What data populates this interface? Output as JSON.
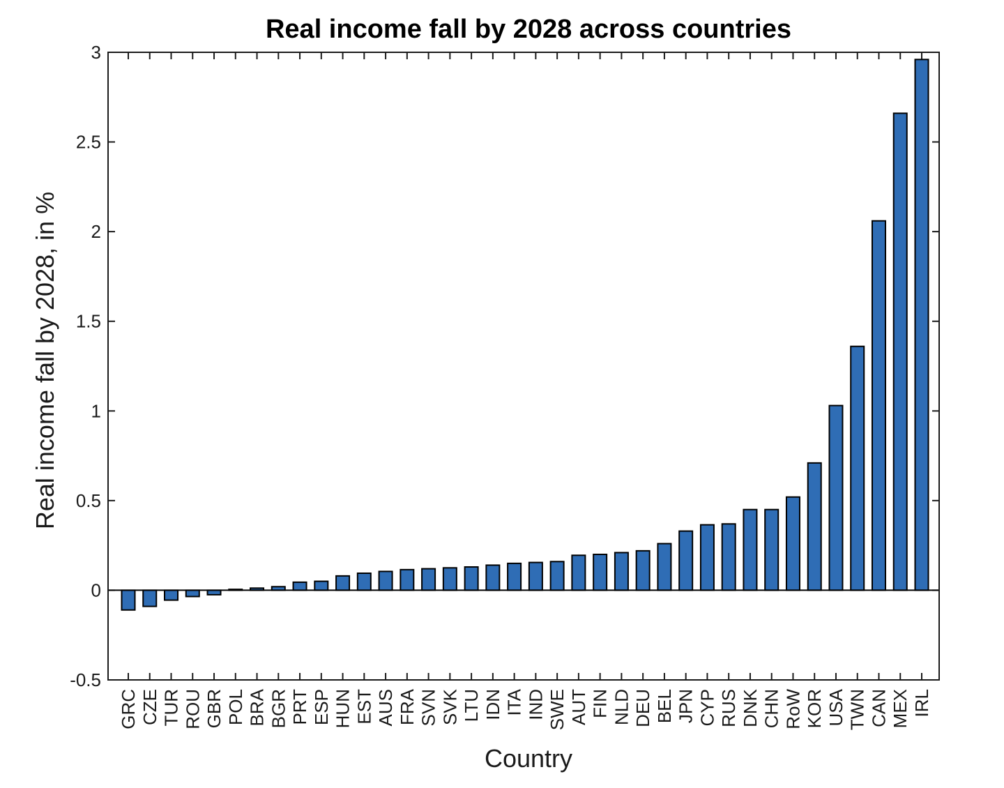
{
  "chart_data": {
    "type": "bar",
    "title": "Real income fall by 2028 across countries",
    "xlabel": "Country",
    "ylabel": "Real income fall by 2028, in %",
    "ylim": [
      -0.5,
      3
    ],
    "yticks": [
      "-0.5",
      "0",
      "0.5",
      "1",
      "1.5",
      "2",
      "2.5",
      "3"
    ],
    "grid": false,
    "legend": "none",
    "bar_color": "#2f6db5",
    "categories": [
      "GRC",
      "CZE",
      "TUR",
      "ROU",
      "GBR",
      "POL",
      "BRA",
      "BGR",
      "PRT",
      "ESP",
      "HUN",
      "EST",
      "AUS",
      "FRA",
      "SVN",
      "SVK",
      "LTU",
      "IDN",
      "ITA",
      "IND",
      "SWE",
      "AUT",
      "FIN",
      "NLD",
      "DEU",
      "BEL",
      "JPN",
      "CYP",
      "RUS",
      "DNK",
      "CHN",
      "RoW",
      "KOR",
      "USA",
      "TWN",
      "CAN",
      "MEX",
      "IRL"
    ],
    "values": [
      -0.11,
      -0.09,
      -0.055,
      -0.035,
      -0.025,
      0.005,
      0.012,
      0.02,
      0.045,
      0.05,
      0.08,
      0.095,
      0.105,
      0.115,
      0.12,
      0.125,
      0.13,
      0.14,
      0.15,
      0.155,
      0.16,
      0.195,
      0.2,
      0.21,
      0.22,
      0.26,
      0.33,
      0.365,
      0.37,
      0.45,
      0.45,
      0.52,
      0.71,
      1.03,
      1.36,
      2.06,
      2.66,
      2.96
    ]
  }
}
